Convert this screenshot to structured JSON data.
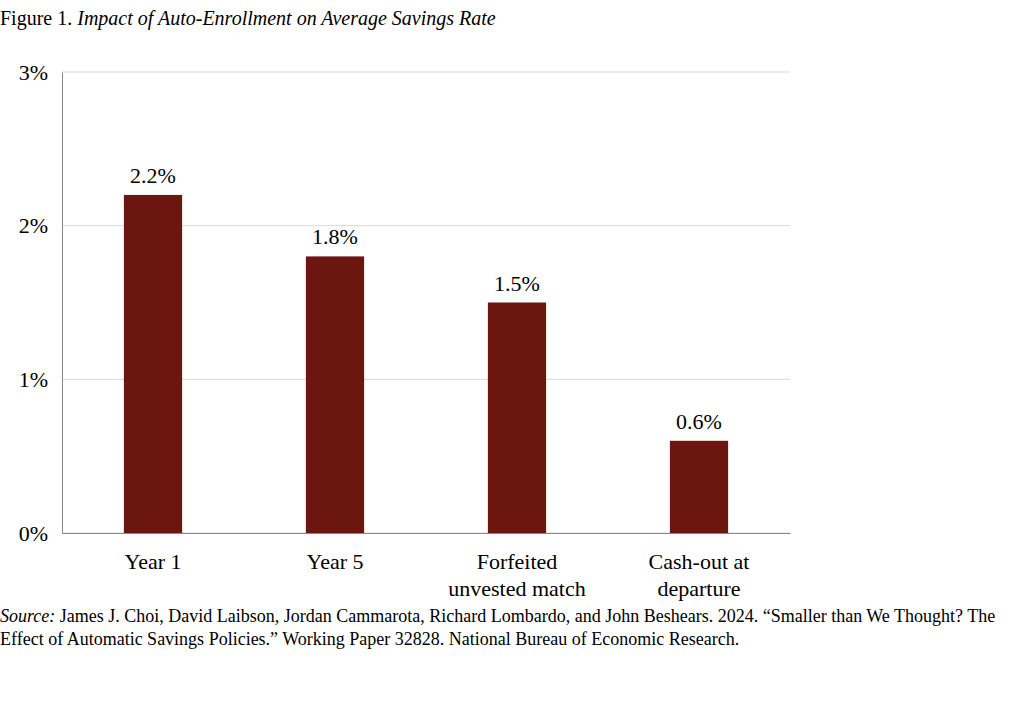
{
  "chart_data": {
    "type": "bar",
    "title": "Figure 1. Impact of Auto-Enrollment on Average Savings Rate",
    "categories": [
      "Year 1",
      "Year 5",
      "Forfeited unvested match",
      "Cash-out at departure"
    ],
    "values": [
      2.2,
      1.8,
      1.5,
      0.6
    ],
    "value_labels": [
      "2.2%",
      "1.8%",
      "1.5%",
      "0.6%"
    ],
    "data_labels": true,
    "color": "#6b1710",
    "ylim": [
      0,
      3
    ],
    "yticks": [
      {
        "value": 0,
        "label": "0%"
      },
      {
        "value": 1,
        "label": "1%"
      },
      {
        "value": 2,
        "label": "2%"
      },
      {
        "value": 3,
        "label": "3%"
      }
    ],
    "grid": true,
    "source": "Source: James J. Choi, David Laibson, Jordan Cammarota, Richard Lombardo, and John Beshears. 2024. “Smaller than We Thought? The Effect of Automatic Savings Policies.” Working Paper 32828. National Bureau of Economic Research."
  }
}
